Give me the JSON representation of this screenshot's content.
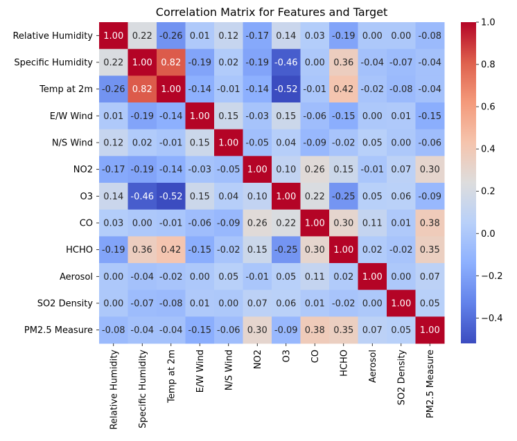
{
  "chart_data": {
    "type": "heatmap",
    "title": "Correlation Matrix for Features and Target",
    "labels": [
      "Relative Humidity",
      "Specific Humidity",
      "Temp at 2m",
      "E/W Wind",
      "N/S Wind",
      "NO2",
      "O3",
      "CO",
      "HCHO",
      "Aerosol",
      "SO2 Density",
      "PM2.5 Measure"
    ],
    "matrix": [
      [
        1.0,
        0.22,
        -0.26,
        0.01,
        0.12,
        -0.17,
        0.14,
        0.03,
        -0.19,
        0.0,
        0.0,
        -0.08
      ],
      [
        0.22,
        1.0,
        0.82,
        -0.19,
        0.02,
        -0.19,
        -0.46,
        0.0,
        0.36,
        -0.04,
        -0.07,
        -0.04
      ],
      [
        -0.26,
        0.82,
        1.0,
        -0.14,
        -0.01,
        -0.14,
        -0.52,
        -0.01,
        0.42,
        -0.02,
        -0.08,
        -0.04
      ],
      [
        0.01,
        -0.19,
        -0.14,
        1.0,
        0.15,
        -0.03,
        0.15,
        -0.06,
        -0.15,
        0.0,
        0.01,
        -0.15
      ],
      [
        0.12,
        0.02,
        -0.01,
        0.15,
        1.0,
        -0.05,
        0.04,
        -0.09,
        -0.02,
        0.05,
        -0.0,
        -0.06
      ],
      [
        -0.17,
        -0.19,
        -0.14,
        -0.03,
        -0.05,
        1.0,
        0.1,
        0.26,
        0.15,
        -0.01,
        0.07,
        0.3
      ],
      [
        0.14,
        -0.46,
        -0.52,
        0.15,
        0.04,
        0.1,
        1.0,
        0.22,
        -0.25,
        0.05,
        0.06,
        -0.09
      ],
      [
        0.03,
        0.0,
        -0.01,
        -0.06,
        -0.09,
        0.26,
        0.22,
        1.0,
        0.3,
        0.11,
        0.01,
        0.38
      ],
      [
        -0.19,
        0.36,
        0.42,
        -0.15,
        -0.02,
        0.15,
        -0.25,
        0.3,
        1.0,
        0.02,
        -0.02,
        0.35
      ],
      [
        0.0,
        -0.04,
        -0.02,
        0.0,
        0.05,
        -0.01,
        0.05,
        0.11,
        0.02,
        1.0,
        0.0,
        0.07
      ],
      [
        0.0,
        -0.07,
        -0.08,
        0.01,
        -0.0,
        0.07,
        0.06,
        0.01,
        -0.02,
        0.0,
        1.0,
        0.05
      ],
      [
        -0.08,
        -0.04,
        -0.04,
        -0.15,
        -0.06,
        0.3,
        -0.09,
        0.38,
        0.35,
        0.07,
        0.05,
        1.0
      ]
    ],
    "colormap": "coolwarm",
    "vmin": -0.52,
    "vmax": 1.0,
    "colorbar_ticks": [
      1.0,
      0.8,
      0.6,
      0.4,
      0.2,
      0.0,
      -0.2,
      -0.4
    ],
    "colorbar_tick_labels": [
      "1.0",
      "0.8",
      "0.6",
      "0.4",
      "0.2",
      "0.0",
      "−0.2",
      "−0.4"
    ],
    "annotation_format": "2 decimals"
  }
}
